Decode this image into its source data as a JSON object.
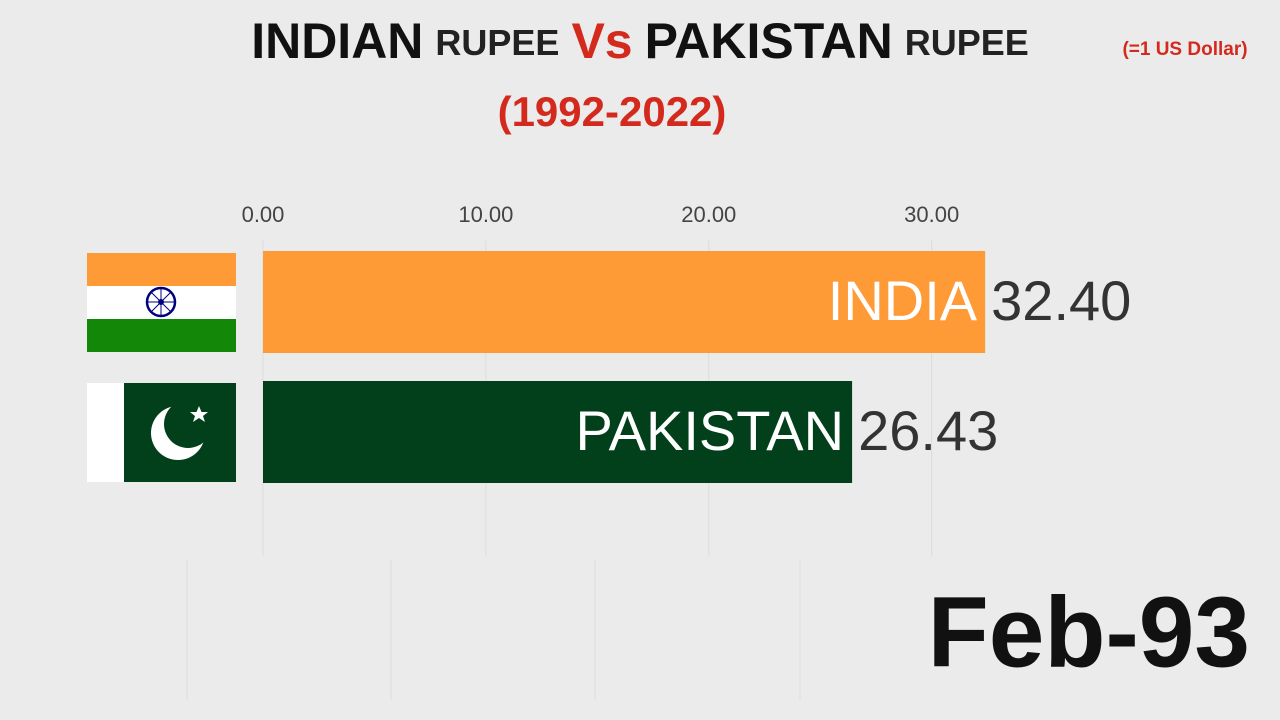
{
  "chart_data": {
    "type": "bar",
    "orientation": "horizontal",
    "title_parts": [
      "INDIAN",
      "RUPEE",
      "Vs",
      "PAKISTAN",
      "RUPEE"
    ],
    "subtitle": "(1992-2022)",
    "unit_note": "(=1 US Dollar)",
    "period": "Feb-93",
    "categories": [
      "INDIA",
      "PAKISTAN"
    ],
    "values": [
      32.4,
      26.43
    ],
    "value_labels": [
      "32.40",
      "26.43"
    ],
    "colors": [
      "#ff9b37",
      "#01401b"
    ],
    "xlim": [
      0,
      45
    ],
    "xticks": [
      {
        "value": 0,
        "label": "0.00"
      },
      {
        "value": 10,
        "label": "10.00"
      },
      {
        "value": 20,
        "label": "20.00"
      },
      {
        "value": 30,
        "label": "30.00"
      }
    ],
    "grid": true
  }
}
